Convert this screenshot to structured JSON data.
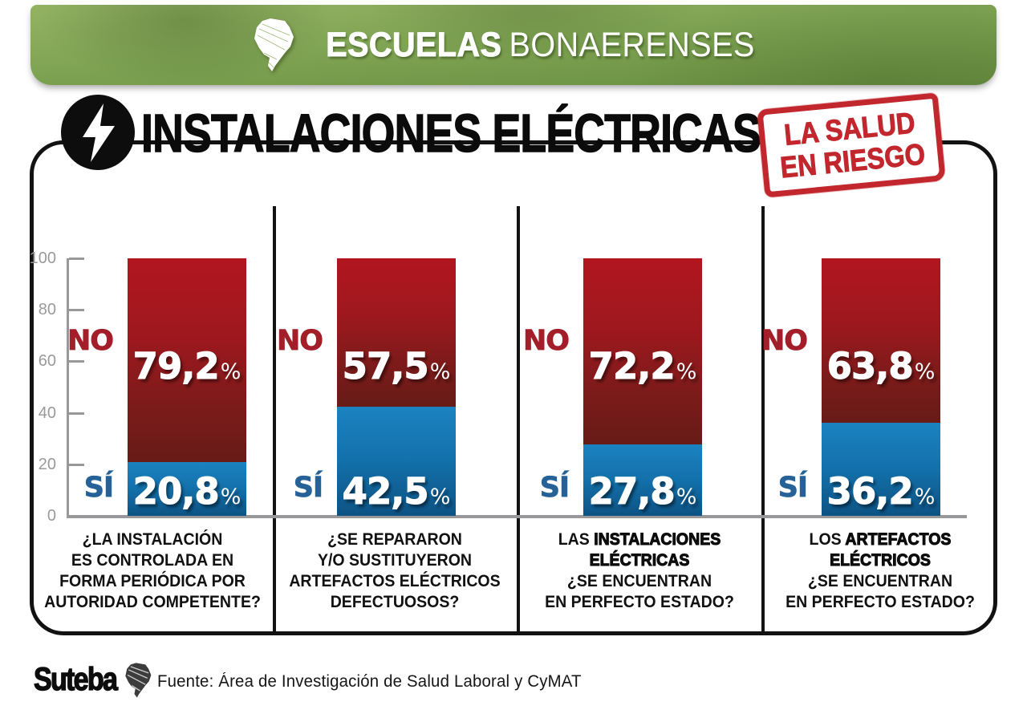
{
  "banner": {
    "brand_bold": "ESCUELAS",
    "brand_regular": "BONAERENSES"
  },
  "header": {
    "title": "INSTALACIONES ELÉCTRICAS",
    "stamp_line1": "LA SALUD",
    "stamp_line2": "EN RIESGO"
  },
  "colors": {
    "banner_green": "#7ea453",
    "stamp_red": "#c1272d",
    "no_label_red": "#a31e29",
    "si_label_blue": "#266297",
    "bar_red_top": "#b2161f",
    "bar_red_bottom": "#671b17",
    "bar_blue_top": "#1b83c1",
    "bar_blue_bottom": "#0d5384",
    "axis_gray": "#98989a",
    "text_black": "#111111"
  },
  "chart_data": {
    "type": "bar",
    "stacked": true,
    "orientation": "vertical",
    "ylim": [
      0,
      100
    ],
    "yticks": [
      100,
      80,
      60,
      40,
      20,
      0
    ],
    "grid": false,
    "legend_position": "beside-bars",
    "series": [
      {
        "name": "NO",
        "values": [
          79.2,
          57.5,
          72.2,
          63.8
        ]
      },
      {
        "name": "SÍ",
        "values": [
          20.8,
          42.5,
          27.8,
          36.2
        ]
      }
    ],
    "value_display": {
      "no": [
        "79,2",
        "57,5",
        "72,2",
        "63,8"
      ],
      "si": [
        "20,8",
        "42,5",
        "27,8",
        "36,2"
      ],
      "percent_sign": "%"
    },
    "series_labels": {
      "no": "NO",
      "si": "SÍ"
    },
    "categories": [
      "¿LA INSTALACIÓN ES CONTROLADA EN FORMA PERIÓDICA POR AUTORIDAD COMPETENTE?",
      "¿SE REPARARON Y/O SUSTITUYERON ARTEFACTOS ELÉCTRICOS DEFECTUOSOS?",
      "LAS INSTALACIONES ELÉCTRICAS ¿SE ENCUENTRAN EN PERFECTO ESTADO?",
      "LOS ARTEFACTOS ELÉCTRICOS ¿SE ENCUENTRAN EN PERFECTO ESTADO?"
    ],
    "question_lines": [
      [
        "¿LA INSTALACIÓN",
        "ES CONTROLADA EN",
        "FORMA PERIÓDICA POR",
        "AUTORIDAD COMPETENTE?"
      ],
      [
        "¿SE REPARARON",
        "Y/O SUSTITUYERON",
        "ARTEFACTOS ELÉCTRICOS",
        "DEFECTUOSOS?"
      ],
      [
        "LAS **INSTALACIONES**",
        "**ELÉCTRICAS**",
        "¿SE ENCUENTRAN",
        "EN PERFECTO ESTADO?"
      ],
      [
        "LOS **ARTEFACTOS**",
        "**ELÉCTRICOS**",
        "¿SE ENCUENTRAN",
        "EN PERFECTO ESTADO?"
      ]
    ]
  },
  "footer": {
    "logo_text": "Suteba",
    "source": "Fuente: Área de Investigación de Salud Laboral y CyMAT"
  }
}
